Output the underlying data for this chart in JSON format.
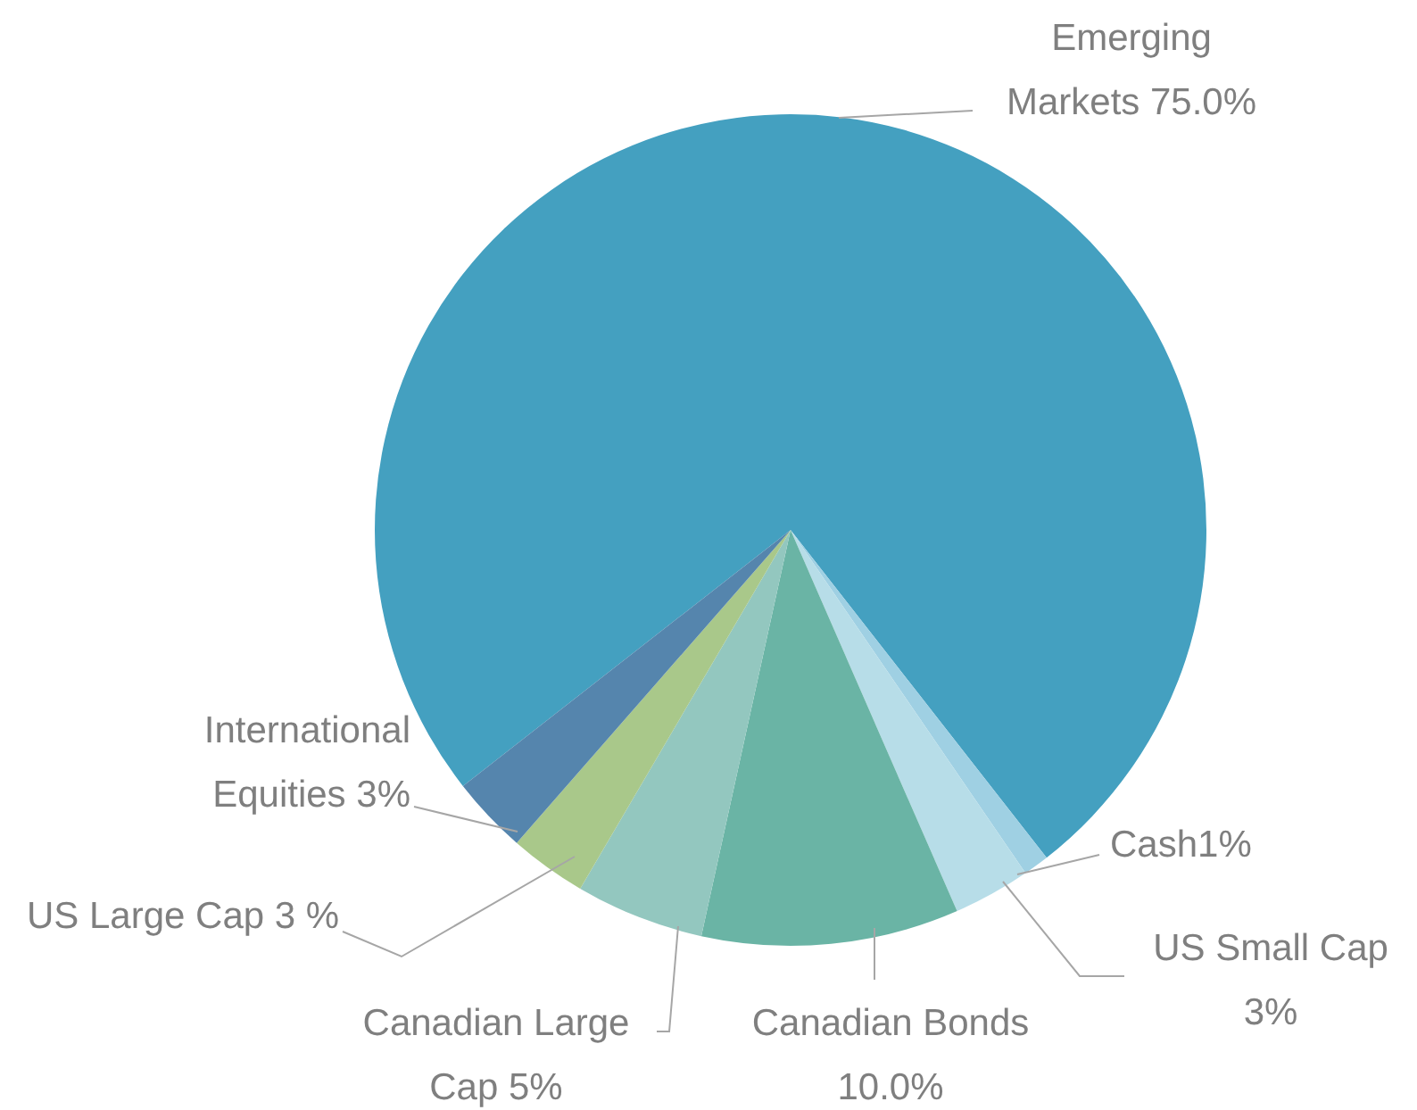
{
  "chart_data": {
    "type": "pie",
    "categories": [
      "Emerging Markets 75.0%",
      "Cash1%",
      "US Small Cap 3%",
      "Canadian Bonds 10.0%",
      "Canadian Large Cap 5%",
      "US Large Cap 3 %",
      "International Equities 3%"
    ],
    "values": [
      75,
      1,
      3,
      10,
      5,
      3,
      3
    ],
    "colors": [
      "#44a0c0",
      "#9fd0e3",
      "#b7dde8",
      "#6ab4a5",
      "#93c7bf",
      "#a9c88a",
      "#5585ad"
    ],
    "legend": false
  }
}
